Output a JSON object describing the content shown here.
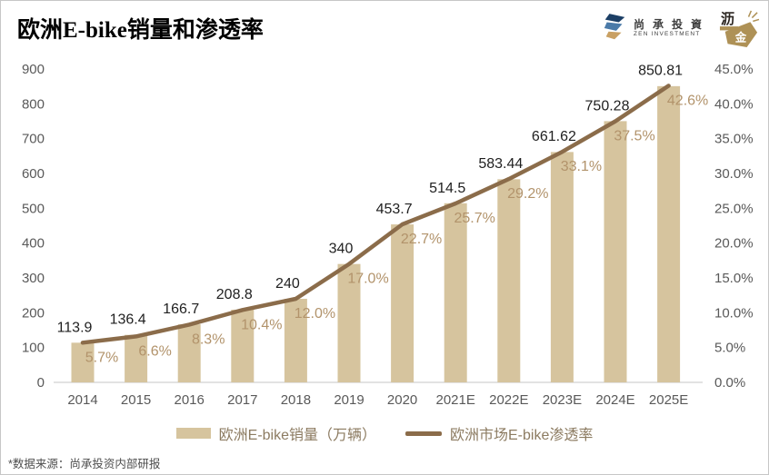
{
  "title": "欧洲E-bike销量和渗透率",
  "footer": "*数据来源：尚承投资内部研报",
  "logos": {
    "zen": {
      "cn": "尚 承 投 資",
      "en": "ZEN INVESTMENT"
    },
    "lijin": {
      "top_char": "沥",
      "bottom_char": "金"
    }
  },
  "colors": {
    "bar": "#D6C49E",
    "line": "#8B6C4A",
    "pct_label": "#B2936B",
    "value_label": "#1F1F1F",
    "axis_label": "#595959",
    "legend_text": "#8C7B61",
    "baseline": "#D9D9D9",
    "zen_navy": "#1C3F66",
    "zen_blue": "#4A7AA8",
    "zen_gold": "#C9A063",
    "lijin_gold": "#AE9156",
    "lijin_dark": "#2B2520"
  },
  "chart_data": {
    "type": "bar+line",
    "title": "欧洲E-bike销量和渗透率",
    "categories": [
      "2014",
      "2015",
      "2016",
      "2017",
      "2018",
      "2019",
      "2020",
      "2021E",
      "2022E",
      "2023E",
      "2024E",
      "2025E"
    ],
    "series": [
      {
        "name": "欧洲E-bike销量（万辆）",
        "type": "bar",
        "axis": "left",
        "values": [
          113.9,
          136.4,
          166.7,
          208.8,
          240,
          340,
          453.7,
          514.5,
          583.44,
          661.62,
          750.28,
          850.81
        ],
        "labels": [
          "113.9",
          "136.4",
          "166.7",
          "208.8",
          "240",
          "340",
          "453.7",
          "514.5",
          "583.44",
          "661.62",
          "750.28",
          "850.81"
        ]
      },
      {
        "name": "欧洲市场E-bike渗透率",
        "type": "line",
        "axis": "right",
        "values": [
          5.7,
          6.6,
          8.3,
          10.4,
          12.0,
          17.0,
          22.7,
          25.7,
          29.2,
          33.1,
          37.5,
          42.6
        ],
        "labels": [
          "5.7%",
          "6.6%",
          "8.3%",
          "10.4%",
          "12.0%",
          "17.0%",
          "22.7%",
          "25.7%",
          "29.2%",
          "33.1%",
          "37.5%",
          "42.6%"
        ]
      }
    ],
    "left_axis": {
      "min": 0,
      "max": 900,
      "step": 100,
      "ticks": [
        "900",
        "800",
        "700",
        "600",
        "500",
        "400",
        "300",
        "200",
        "100",
        "0"
      ]
    },
    "right_axis": {
      "min": 0,
      "max": 45,
      "step": 5,
      "ticks": [
        "45.0%",
        "40.0%",
        "35.0%",
        "30.0%",
        "25.0%",
        "20.0%",
        "15.0%",
        "10.0%",
        "5.0%",
        "0.0%"
      ]
    },
    "grid": false,
    "legend_position": "bottom"
  }
}
